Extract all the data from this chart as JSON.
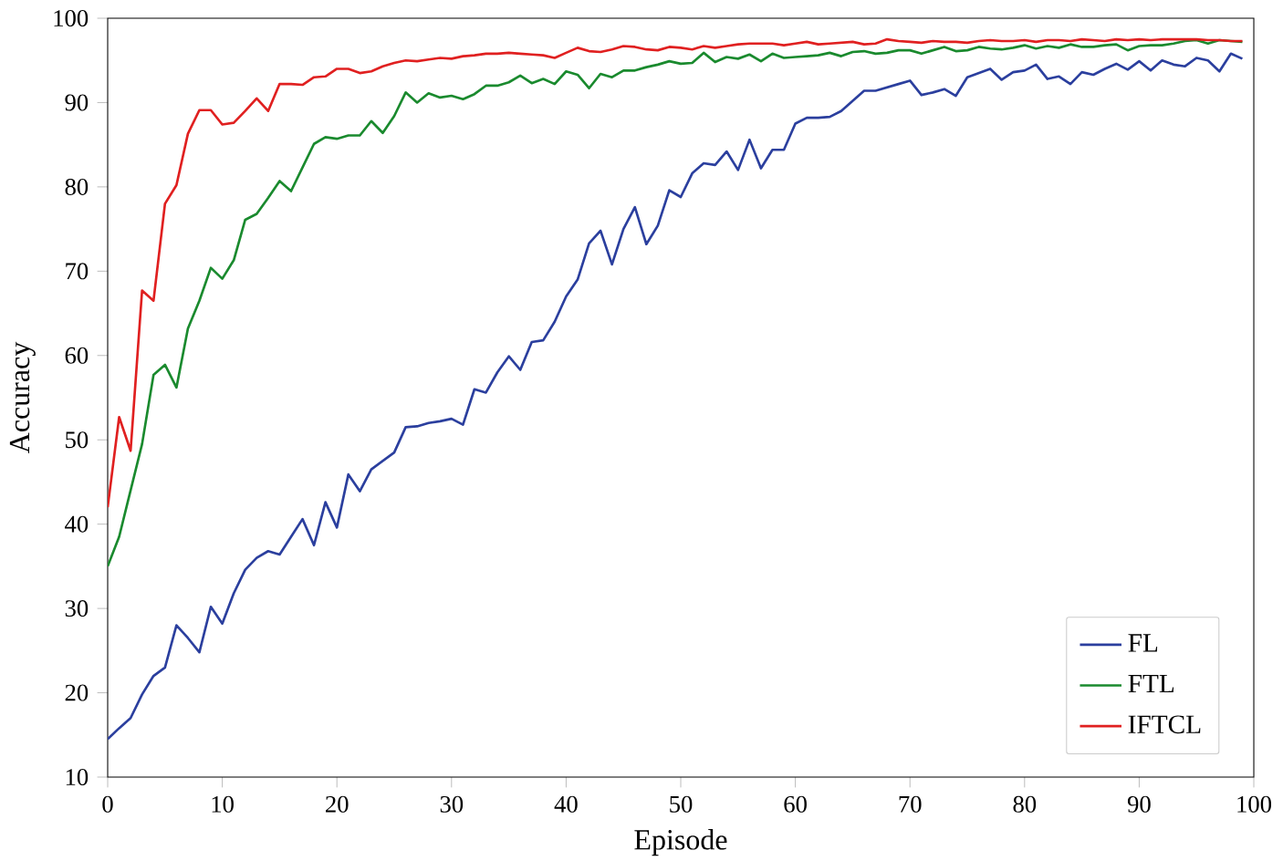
{
  "chart_data": {
    "type": "line",
    "xlabel": "Episode",
    "ylabel": "Accuracy",
    "x": [
      0,
      1,
      2,
      3,
      4,
      5,
      6,
      7,
      8,
      9,
      10,
      11,
      12,
      13,
      14,
      15,
      16,
      17,
      18,
      19,
      20,
      21,
      22,
      23,
      24,
      25,
      26,
      27,
      28,
      29,
      30,
      31,
      32,
      33,
      34,
      35,
      36,
      37,
      38,
      39,
      40,
      41,
      42,
      43,
      44,
      45,
      46,
      47,
      48,
      49,
      50,
      51,
      52,
      53,
      54,
      55,
      56,
      57,
      58,
      59,
      60,
      61,
      62,
      63,
      64,
      65,
      66,
      67,
      68,
      69,
      70,
      71,
      72,
      73,
      74,
      75,
      76,
      77,
      78,
      79,
      80,
      81,
      82,
      83,
      84,
      85,
      86,
      87,
      88,
      89,
      90,
      91,
      92,
      93,
      94,
      95,
      96,
      97,
      98,
      99
    ],
    "xlim": [
      0,
      100
    ],
    "ylim": [
      10,
      100
    ],
    "xticks": [
      0,
      10,
      20,
      30,
      40,
      50,
      60,
      70,
      80,
      90,
      100
    ],
    "yticks": [
      10,
      20,
      30,
      40,
      50,
      60,
      70,
      80,
      90,
      100
    ],
    "legend": "bottom right",
    "grid": false,
    "marker": "none",
    "line_style": "solid",
    "series": [
      {
        "name": "FL",
        "color": "#2b3f9e",
        "values": [
          14.5,
          15.8,
          17,
          19.8,
          22,
          23,
          28,
          26.5,
          24.8,
          30.2,
          28.2,
          31.8,
          34.6,
          36,
          36.8,
          36.4,
          38.5,
          40.6,
          37.5,
          42.6,
          39.6,
          45.9,
          43.9,
          46.5,
          47.5,
          48.5,
          51.5,
          51.6,
          52,
          52.2,
          52.5,
          51.8,
          56,
          55.6,
          58,
          59.9,
          58.3,
          61.6,
          61.8,
          64,
          67,
          69,
          73.3,
          74.8,
          70.8,
          75,
          77.6,
          73.2,
          75.4,
          79.6,
          78.8,
          81.6,
          82.8,
          82.6,
          84.2,
          82,
          85.6,
          82.2,
          84.4,
          84.4,
          87.5,
          88.2,
          88.2,
          88.3,
          89,
          90.2,
          91.4,
          91.4,
          91.8,
          92.2,
          92.6,
          90.9,
          91.2,
          91.6,
          90.8,
          93,
          93.5,
          94,
          92.7,
          93.6,
          93.8,
          94.5,
          92.8,
          93.1,
          92.2,
          93.6,
          93.3,
          94,
          94.6,
          93.9,
          94.9,
          93.8,
          95,
          94.5,
          94.3,
          95.3,
          95,
          93.7,
          95.8,
          95.2
        ]
      },
      {
        "name": "FTL",
        "color": "#1a8a2e",
        "values": [
          35,
          38.5,
          44,
          49.5,
          57.7,
          58.9,
          56.2,
          63.2,
          66.5,
          70.4,
          69.1,
          71.3,
          76.1,
          76.8,
          78.7,
          80.7,
          79.5,
          82.3,
          85.1,
          85.9,
          85.7,
          86.1,
          86.1,
          87.8,
          86.4,
          88.4,
          91.2,
          90,
          91.1,
          90.6,
          90.8,
          90.4,
          91,
          92,
          92,
          92.4,
          93.2,
          92.3,
          92.8,
          92.2,
          93.7,
          93.3,
          91.7,
          93.4,
          93,
          93.8,
          93.8,
          94.2,
          94.5,
          94.9,
          94.6,
          94.7,
          95.9,
          94.8,
          95.4,
          95.2,
          95.7,
          94.9,
          95.8,
          95.3,
          95.4,
          95.5,
          95.6,
          95.9,
          95.5,
          96,
          96.1,
          95.8,
          95.9,
          96.2,
          96.2,
          95.8,
          96.2,
          96.6,
          96.1,
          96.2,
          96.6,
          96.4,
          96.3,
          96.5,
          96.8,
          96.4,
          96.7,
          96.5,
          96.9,
          96.6,
          96.6,
          96.8,
          96.9,
          96.2,
          96.7,
          96.8,
          96.8,
          97,
          97.3,
          97.4,
          97,
          97.4,
          97.3,
          97.2
        ]
      },
      {
        "name": "IFTCL",
        "color": "#e02020",
        "values": [
          42,
          52.7,
          48.7,
          67.7,
          66.5,
          78,
          80.2,
          86.3,
          89.1,
          89.1,
          87.4,
          87.6,
          89,
          90.5,
          89,
          92.2,
          92.2,
          92.1,
          93,
          93.1,
          94,
          94,
          93.5,
          93.7,
          94.3,
          94.7,
          95,
          94.9,
          95.1,
          95.3,
          95.2,
          95.5,
          95.6,
          95.8,
          95.8,
          95.9,
          95.8,
          95.7,
          95.6,
          95.3,
          95.9,
          96.5,
          96.1,
          96,
          96.3,
          96.7,
          96.6,
          96.3,
          96.2,
          96.6,
          96.5,
          96.3,
          96.7,
          96.5,
          96.7,
          96.9,
          97,
          97,
          97,
          96.8,
          97,
          97.2,
          96.9,
          97,
          97.1,
          97.2,
          96.9,
          97,
          97.5,
          97.3,
          97.2,
          97.1,
          97.3,
          97.2,
          97.2,
          97.1,
          97.3,
          97.4,
          97.3,
          97.3,
          97.4,
          97.2,
          97.4,
          97.4,
          97.3,
          97.5,
          97.4,
          97.3,
          97.5,
          97.4,
          97.5,
          97.4,
          97.5,
          97.5,
          97.5,
          97.5,
          97.4,
          97.4,
          97.3,
          97.3
        ]
      }
    ]
  }
}
